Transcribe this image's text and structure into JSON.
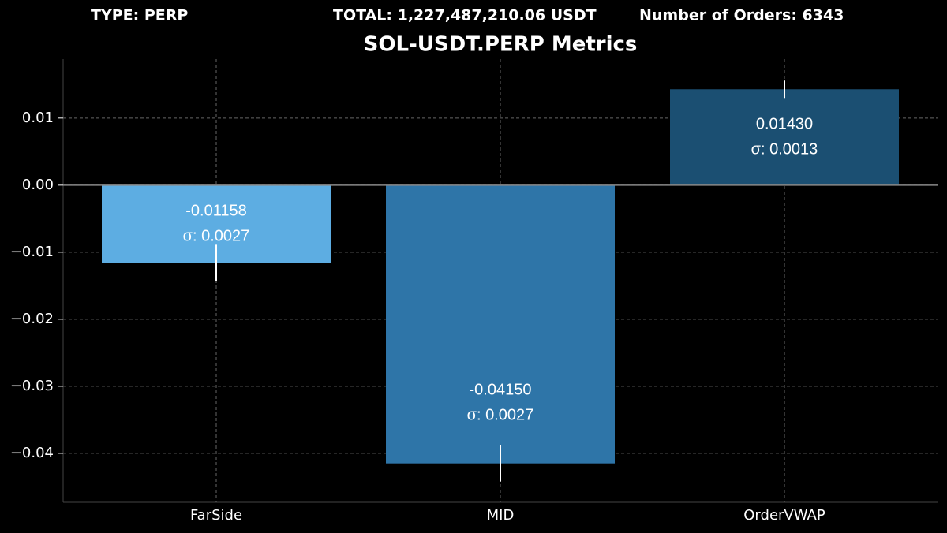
{
  "chart_data": {
    "type": "bar",
    "header": [
      "TYPE: PERP",
      "TOTAL: 1,227,487,210.06 USDT",
      "Number of Orders: 6343"
    ],
    "title": "SOL-USDT.PERP Metrics",
    "categories": [
      "FarSide",
      "MID",
      "OrderVWAP"
    ],
    "values": [
      -0.01158,
      -0.0415,
      0.0143
    ],
    "value_labels": [
      "-0.01158",
      "-0.04150",
      "0.01430"
    ],
    "errors": [
      0.0027,
      0.0027,
      0.0013
    ],
    "error_labels": [
      "σ: 0.0027",
      "σ: 0.0027",
      "σ: 0.0013"
    ],
    "colors": [
      "#5dade2",
      "#2e75a8",
      "#1b4f72"
    ],
    "ylim": [
      -0.0473,
      0.0188
    ],
    "yticks": [
      {
        "value": -0.04,
        "label": "−0.04"
      },
      {
        "value": -0.03,
        "label": "−0.03"
      },
      {
        "value": -0.02,
        "label": "−0.02"
      },
      {
        "value": -0.01,
        "label": "−0.01"
      },
      {
        "value": 0,
        "label": "0.00"
      },
      0.01
    ],
    "grid": true
  }
}
